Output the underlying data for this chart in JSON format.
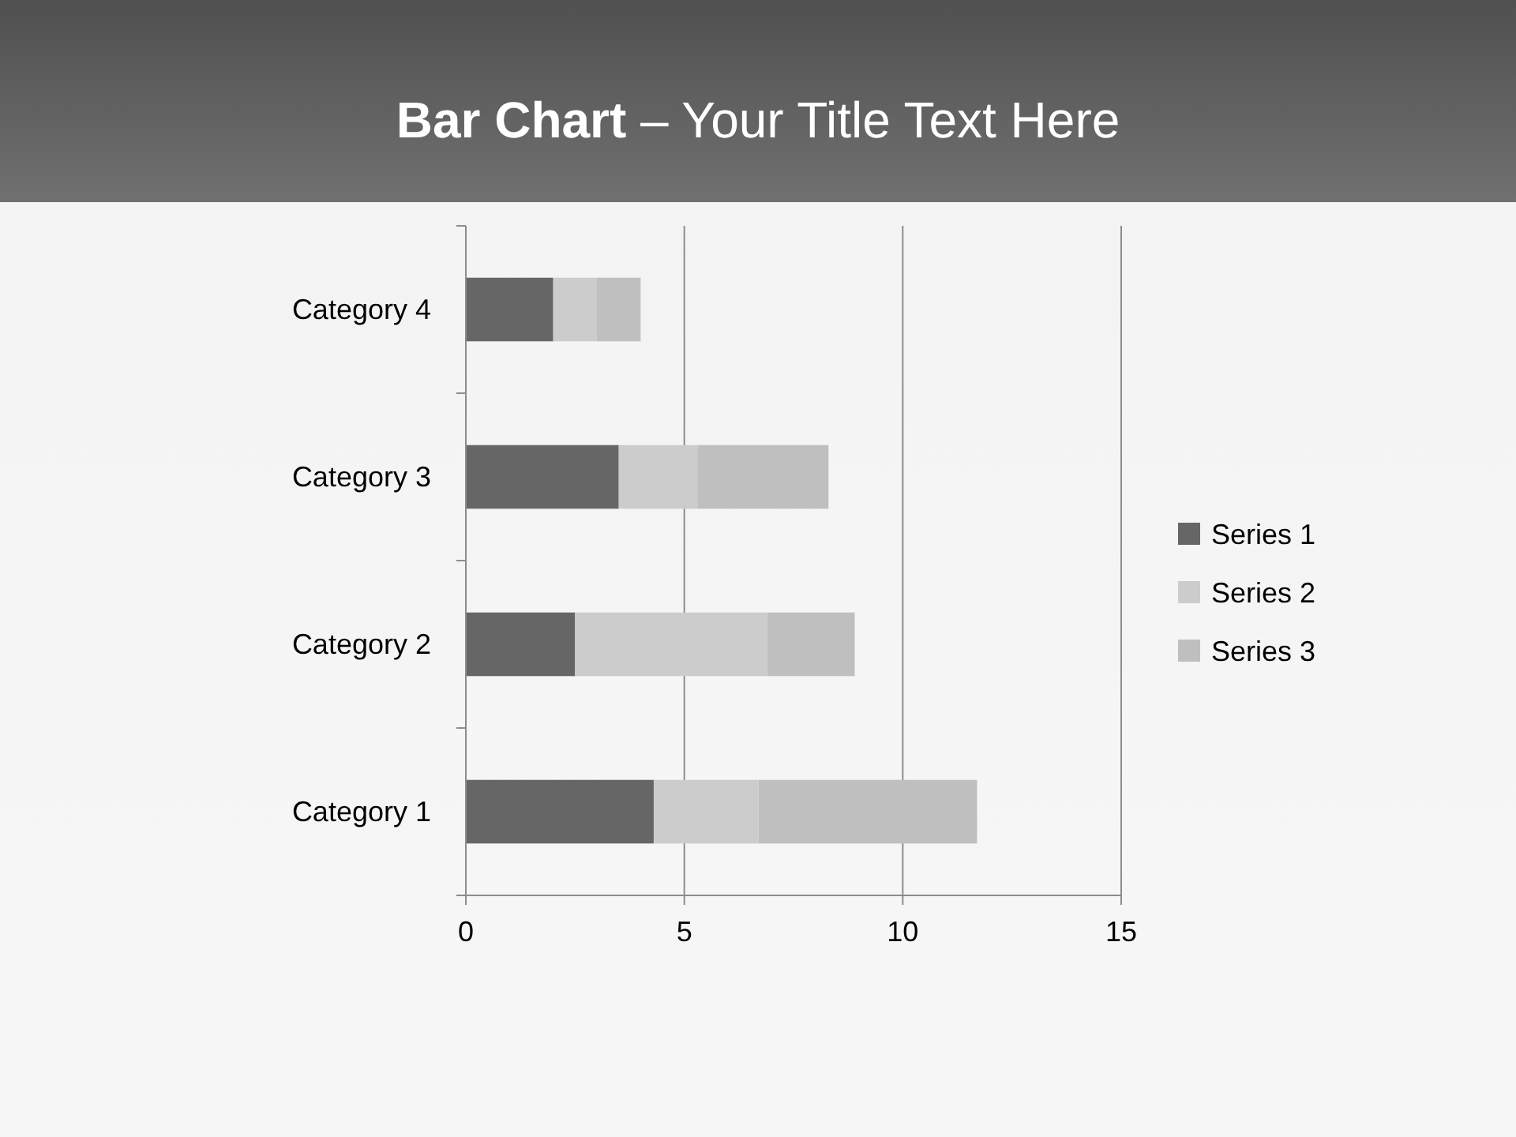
{
  "chart_data": {
    "type": "bar",
    "title": "Bar Chart – Your Title Text Here",
    "orientation": "horizontal",
    "stacked": true,
    "categories": [
      "Category 4",
      "Category 3",
      "Category 2",
      "Category 1"
    ],
    "series": [
      {
        "name": "Series 1",
        "color": "#666666",
        "values": [
          2,
          3.5,
          2.5,
          4.3
        ]
      },
      {
        "name": "Series 2",
        "color": "#cccccc",
        "values": [
          1,
          1.8,
          4.4,
          2.4
        ]
      },
      {
        "name": "Series 3",
        "color": "#bfbfbf",
        "values": [
          1,
          3,
          2,
          5
        ]
      }
    ],
    "xlim": [
      0,
      15
    ],
    "xticks": [
      0,
      5,
      10,
      15
    ],
    "grid": "x",
    "legend": "right"
  }
}
